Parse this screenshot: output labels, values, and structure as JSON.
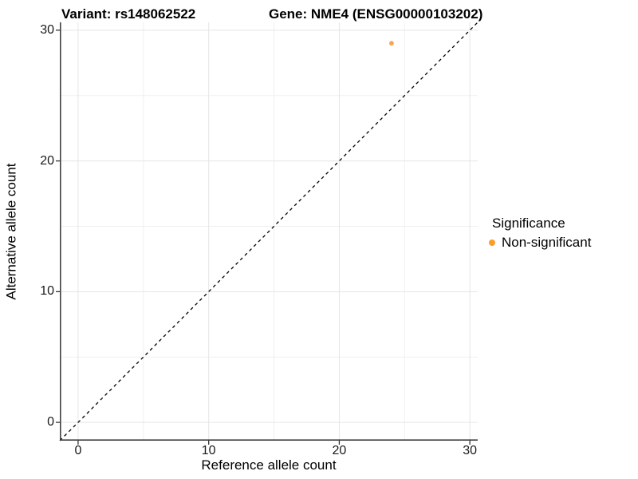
{
  "chart_data": {
    "type": "scatter",
    "title_left": "Variant: rs148062522",
    "title_right": "Gene: NME4 (ENSG00000103202)",
    "xlabel": "Reference allele count",
    "ylabel": "Alternative allele count",
    "xlim": [
      -1.4,
      30.6
    ],
    "ylim": [
      -1.4,
      30.6
    ],
    "x_ticks": [
      0,
      10,
      20,
      30
    ],
    "y_ticks": [
      0,
      10,
      20,
      30
    ],
    "x_minor_gridlines": [
      5,
      15,
      25
    ],
    "y_minor_gridlines": [
      5,
      15,
      25
    ],
    "grid": true,
    "identity_line": {
      "style": "dashed",
      "from": [
        -1.4,
        -1.4
      ],
      "to": [
        30.6,
        30.6
      ],
      "color": "#000000"
    },
    "series": [
      {
        "name": "Non-significant",
        "color": "#F9A242",
        "points": [
          {
            "x": 24,
            "y": 29
          }
        ]
      }
    ],
    "legend": {
      "position": "right",
      "title": "Significance",
      "items": [
        {
          "label": "Non-significant",
          "color": "#FB9E27"
        }
      ]
    },
    "colors": {
      "major_grid": "#E5E5E5",
      "minor_grid": "#F0F0F0",
      "axis_line": "#404040",
      "tick_mark": "#333333"
    }
  }
}
